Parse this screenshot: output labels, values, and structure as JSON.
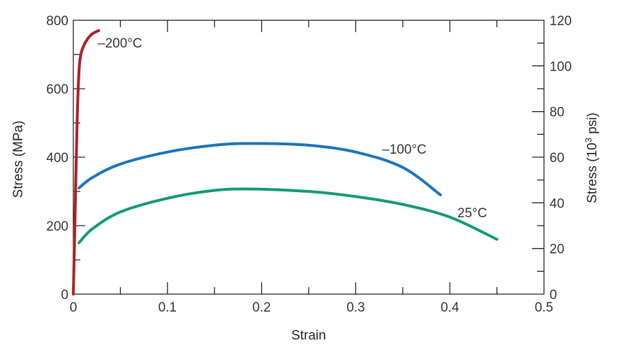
{
  "chart_data": {
    "type": "line",
    "xlabel": "Strain",
    "ylabel": "Stress (MPa)",
    "y2label_prefix": "Stress (10",
    "y2label_exp": "3",
    "y2label_suffix": " psi)",
    "xlim": [
      0,
      0.5
    ],
    "ylim": [
      0,
      800
    ],
    "y2lim": [
      0,
      120
    ],
    "x_ticks": [
      0,
      0.1,
      0.2,
      0.3,
      0.4,
      0.5
    ],
    "x_tick_labels": [
      "0",
      "0.1",
      "0.2",
      "0.3",
      "0.4",
      "0.5"
    ],
    "y_ticks": [
      0,
      200,
      400,
      600,
      800
    ],
    "y_tick_labels": [
      "0",
      "200",
      "400",
      "600",
      "800"
    ],
    "y2_ticks": [
      0,
      20,
      40,
      60,
      80,
      100,
      120
    ],
    "y2_tick_labels": [
      "0",
      "20",
      "40",
      "60",
      "80",
      "100",
      "120"
    ],
    "series": [
      {
        "label": "–200°C",
        "color": "#b01e23",
        "points": [
          [
            0,
            0
          ],
          [
            0.002,
            250
          ],
          [
            0.004,
            500
          ],
          [
            0.006,
            650
          ],
          [
            0.008,
            700
          ],
          [
            0.011,
            725
          ],
          [
            0.015,
            745
          ],
          [
            0.02,
            760
          ],
          [
            0.027,
            770
          ]
        ]
      },
      {
        "label": "–100°C",
        "color": "#1b75bb",
        "points": [
          [
            0.006,
            310
          ],
          [
            0.02,
            340
          ],
          [
            0.05,
            380
          ],
          [
            0.1,
            415
          ],
          [
            0.15,
            435
          ],
          [
            0.19,
            440
          ],
          [
            0.25,
            435
          ],
          [
            0.3,
            415
          ],
          [
            0.35,
            370
          ],
          [
            0.39,
            290
          ]
        ]
      },
      {
        "label": "25°C",
        "color": "#129b73",
        "points": [
          [
            0.006,
            150
          ],
          [
            0.02,
            190
          ],
          [
            0.05,
            240
          ],
          [
            0.1,
            280
          ],
          [
            0.15,
            303
          ],
          [
            0.19,
            307
          ],
          [
            0.25,
            300
          ],
          [
            0.3,
            285
          ],
          [
            0.35,
            262
          ],
          [
            0.4,
            225
          ],
          [
            0.45,
            160
          ]
        ]
      }
    ],
    "curve_labels": [
      {
        "text": "–200°C",
        "x": 0.026,
        "y": 720
      },
      {
        "text": "–100°C",
        "x": 0.328,
        "y": 410
      },
      {
        "text": "25°C",
        "x": 0.408,
        "y": 225
      }
    ]
  }
}
